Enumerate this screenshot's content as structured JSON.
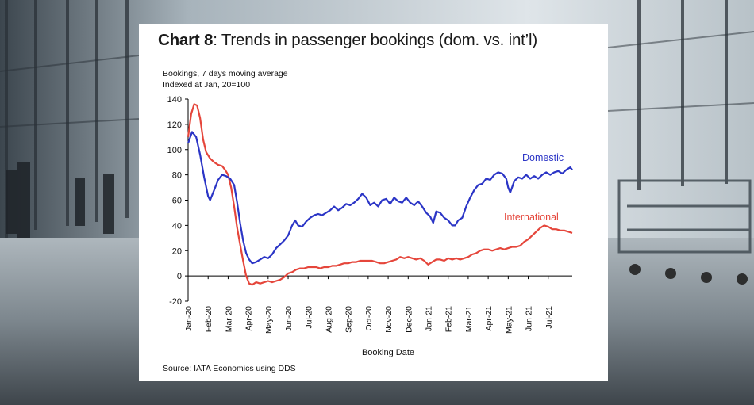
{
  "chart_title": {
    "bold": "Chart 8",
    "rest": ": Trends in passenger bookings (dom. vs. int’l)"
  },
  "subtitle_lines": [
    "Bookings, 7 days moving average",
    "Indexed at Jan, 20=100"
  ],
  "source": "Source: IATA Economics using DDS",
  "colors": {
    "domestic": "#2b35c6",
    "international": "#e5463b",
    "axis": "#000000"
  },
  "chart_data": {
    "type": "line",
    "title": "Chart 8: Trends in passenger bookings (dom. vs. int’l)",
    "xlabel": "Booking Date",
    "ylabel": "",
    "ylim": [
      -20,
      140
    ],
    "yticks": [
      -20,
      0,
      20,
      40,
      60,
      80,
      100,
      120,
      140
    ],
    "xlim": [
      0,
      19.2
    ],
    "xticks": [
      "Jan-20",
      "Feb-20",
      "Mar-20",
      "Apr-20",
      "May-20",
      "Jun-20",
      "Jul-20",
      "Aug-20",
      "Sep-20",
      "Oct-20",
      "Nov-20",
      "Dec-20",
      "Jan-21",
      "Feb-21",
      "Mar-21",
      "Apr-21",
      "May-21",
      "Jun-21",
      "Jul-21"
    ],
    "grid": false,
    "legend": "inline labels at series ends",
    "series": [
      {
        "name": "Domestic",
        "points": [
          [
            0,
            105
          ],
          [
            0.2,
            114
          ],
          [
            0.4,
            110
          ],
          [
            0.6,
            96
          ],
          [
            0.8,
            78
          ],
          [
            1.0,
            63
          ],
          [
            1.1,
            60
          ],
          [
            1.3,
            68
          ],
          [
            1.5,
            76
          ],
          [
            1.7,
            80
          ],
          [
            1.9,
            79
          ],
          [
            2.1,
            77
          ],
          [
            2.3,
            72
          ],
          [
            2.45,
            58
          ],
          [
            2.6,
            42
          ],
          [
            2.75,
            28
          ],
          [
            2.9,
            18
          ],
          [
            3.05,
            13
          ],
          [
            3.2,
            10
          ],
          [
            3.4,
            11
          ],
          [
            3.6,
            13
          ],
          [
            3.8,
            15
          ],
          [
            4.0,
            14
          ],
          [
            4.2,
            17
          ],
          [
            4.4,
            22
          ],
          [
            4.6,
            25
          ],
          [
            4.8,
            28
          ],
          [
            5.0,
            32
          ],
          [
            5.2,
            40
          ],
          [
            5.35,
            44
          ],
          [
            5.5,
            40
          ],
          [
            5.7,
            39
          ],
          [
            5.9,
            43
          ],
          [
            6.1,
            46
          ],
          [
            6.3,
            48
          ],
          [
            6.5,
            49
          ],
          [
            6.7,
            48
          ],
          [
            6.9,
            50
          ],
          [
            7.1,
            52
          ],
          [
            7.3,
            55
          ],
          [
            7.5,
            52
          ],
          [
            7.7,
            54
          ],
          [
            7.9,
            57
          ],
          [
            8.1,
            56
          ],
          [
            8.3,
            58
          ],
          [
            8.5,
            61
          ],
          [
            8.7,
            65
          ],
          [
            8.9,
            62
          ],
          [
            9.1,
            56
          ],
          [
            9.3,
            58
          ],
          [
            9.5,
            55
          ],
          [
            9.7,
            60
          ],
          [
            9.9,
            61
          ],
          [
            10.1,
            57
          ],
          [
            10.3,
            62
          ],
          [
            10.5,
            59
          ],
          [
            10.7,
            58
          ],
          [
            10.9,
            62
          ],
          [
            11.1,
            58
          ],
          [
            11.3,
            56
          ],
          [
            11.5,
            59
          ],
          [
            11.7,
            55
          ],
          [
            11.9,
            50
          ],
          [
            12.1,
            47
          ],
          [
            12.25,
            42
          ],
          [
            12.4,
            51
          ],
          [
            12.6,
            50
          ],
          [
            12.8,
            46
          ],
          [
            13.0,
            44
          ],
          [
            13.2,
            40
          ],
          [
            13.35,
            40
          ],
          [
            13.5,
            44
          ],
          [
            13.7,
            46
          ],
          [
            13.9,
            55
          ],
          [
            14.1,
            62
          ],
          [
            14.3,
            68
          ],
          [
            14.5,
            72
          ],
          [
            14.7,
            73
          ],
          [
            14.9,
            77
          ],
          [
            15.1,
            76
          ],
          [
            15.3,
            80
          ],
          [
            15.5,
            82
          ],
          [
            15.7,
            81
          ],
          [
            15.9,
            77
          ],
          [
            16.0,
            70
          ],
          [
            16.1,
            66
          ],
          [
            16.3,
            75
          ],
          [
            16.5,
            78
          ],
          [
            16.7,
            77
          ],
          [
            16.9,
            80
          ],
          [
            17.1,
            77
          ],
          [
            17.3,
            79
          ],
          [
            17.5,
            77
          ],
          [
            17.7,
            80
          ],
          [
            17.9,
            82
          ],
          [
            18.1,
            80
          ],
          [
            18.3,
            82
          ],
          [
            18.5,
            83
          ],
          [
            18.7,
            81
          ],
          [
            18.9,
            84
          ],
          [
            19.1,
            86
          ],
          [
            19.2,
            84
          ]
        ]
      },
      {
        "name": "International",
        "points": [
          [
            0,
            110
          ],
          [
            0.15,
            128
          ],
          [
            0.3,
            136
          ],
          [
            0.45,
            135
          ],
          [
            0.6,
            125
          ],
          [
            0.75,
            108
          ],
          [
            0.9,
            98
          ],
          [
            1.1,
            93
          ],
          [
            1.3,
            90
          ],
          [
            1.5,
            88
          ],
          [
            1.7,
            87
          ],
          [
            1.85,
            84
          ],
          [
            2.0,
            80
          ],
          [
            2.15,
            70
          ],
          [
            2.3,
            55
          ],
          [
            2.45,
            38
          ],
          [
            2.6,
            25
          ],
          [
            2.75,
            12
          ],
          [
            2.9,
            0
          ],
          [
            3.05,
            -6
          ],
          [
            3.2,
            -7
          ],
          [
            3.4,
            -5
          ],
          [
            3.6,
            -6
          ],
          [
            3.8,
            -5
          ],
          [
            4.0,
            -4
          ],
          [
            4.2,
            -5
          ],
          [
            4.4,
            -4
          ],
          [
            4.6,
            -3
          ],
          [
            4.8,
            -1
          ],
          [
            5.0,
            2
          ],
          [
            5.2,
            3
          ],
          [
            5.4,
            5
          ],
          [
            5.6,
            6
          ],
          [
            5.8,
            6
          ],
          [
            6.0,
            7
          ],
          [
            6.2,
            7
          ],
          [
            6.4,
            7
          ],
          [
            6.6,
            6
          ],
          [
            6.8,
            7
          ],
          [
            7.0,
            7
          ],
          [
            7.2,
            8
          ],
          [
            7.4,
            8
          ],
          [
            7.6,
            9
          ],
          [
            7.8,
            10
          ],
          [
            8.0,
            10
          ],
          [
            8.2,
            11
          ],
          [
            8.4,
            11
          ],
          [
            8.6,
            12
          ],
          [
            8.8,
            12
          ],
          [
            9.0,
            12
          ],
          [
            9.2,
            12
          ],
          [
            9.4,
            11
          ],
          [
            9.6,
            10
          ],
          [
            9.8,
            10
          ],
          [
            10.0,
            11
          ],
          [
            10.2,
            12
          ],
          [
            10.4,
            13
          ],
          [
            10.6,
            15
          ],
          [
            10.8,
            14
          ],
          [
            11.0,
            15
          ],
          [
            11.2,
            14
          ],
          [
            11.4,
            13
          ],
          [
            11.6,
            14
          ],
          [
            11.8,
            12
          ],
          [
            12.0,
            9
          ],
          [
            12.2,
            11
          ],
          [
            12.4,
            13
          ],
          [
            12.6,
            13
          ],
          [
            12.8,
            12
          ],
          [
            13.0,
            14
          ],
          [
            13.2,
            13
          ],
          [
            13.4,
            14
          ],
          [
            13.6,
            13
          ],
          [
            13.8,
            14
          ],
          [
            14.0,
            15
          ],
          [
            14.2,
            17
          ],
          [
            14.4,
            18
          ],
          [
            14.6,
            20
          ],
          [
            14.8,
            21
          ],
          [
            15.0,
            21
          ],
          [
            15.2,
            20
          ],
          [
            15.4,
            21
          ],
          [
            15.6,
            22
          ],
          [
            15.8,
            21
          ],
          [
            16.0,
            22
          ],
          [
            16.2,
            23
          ],
          [
            16.4,
            23
          ],
          [
            16.6,
            24
          ],
          [
            16.8,
            27
          ],
          [
            17.0,
            29
          ],
          [
            17.2,
            32
          ],
          [
            17.4,
            35
          ],
          [
            17.6,
            38
          ],
          [
            17.8,
            40
          ],
          [
            18.0,
            39
          ],
          [
            18.2,
            37
          ],
          [
            18.4,
            37
          ],
          [
            18.6,
            36
          ],
          [
            18.8,
            36
          ],
          [
            19.0,
            35
          ],
          [
            19.2,
            34
          ]
        ]
      }
    ]
  }
}
